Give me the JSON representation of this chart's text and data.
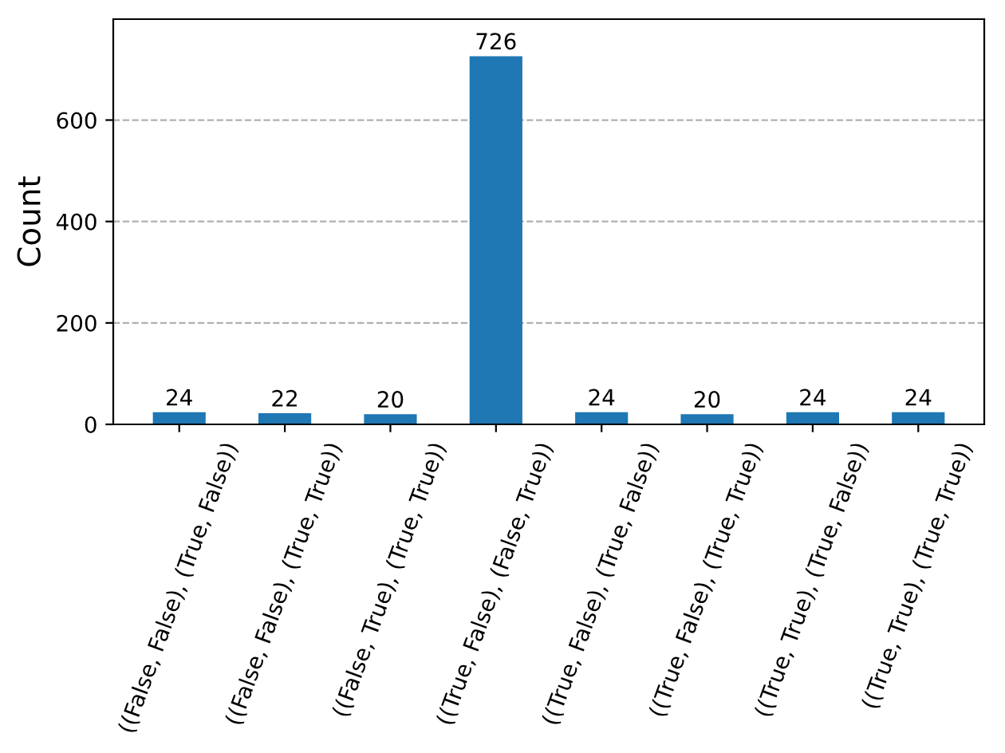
{
  "chart_data": {
    "type": "bar",
    "ylabel": "Count",
    "categories": [
      "((False, False), (True, False))",
      "((False, False), (True, True))",
      "((False, True), (True, True))",
      "((True, False), (False, True))",
      "((True, False), (True, False))",
      "((True, False), (True, True))",
      "((True, True), (True, False))",
      "((True, True), (True, True))"
    ],
    "values": [
      24,
      22,
      20,
      726,
      24,
      20,
      24,
      24
    ],
    "color": "#1f77b4",
    "ylim": [
      0,
      799
    ],
    "yticks": [
      0,
      200,
      400,
      600
    ],
    "grid": "y",
    "data_labels": true
  }
}
